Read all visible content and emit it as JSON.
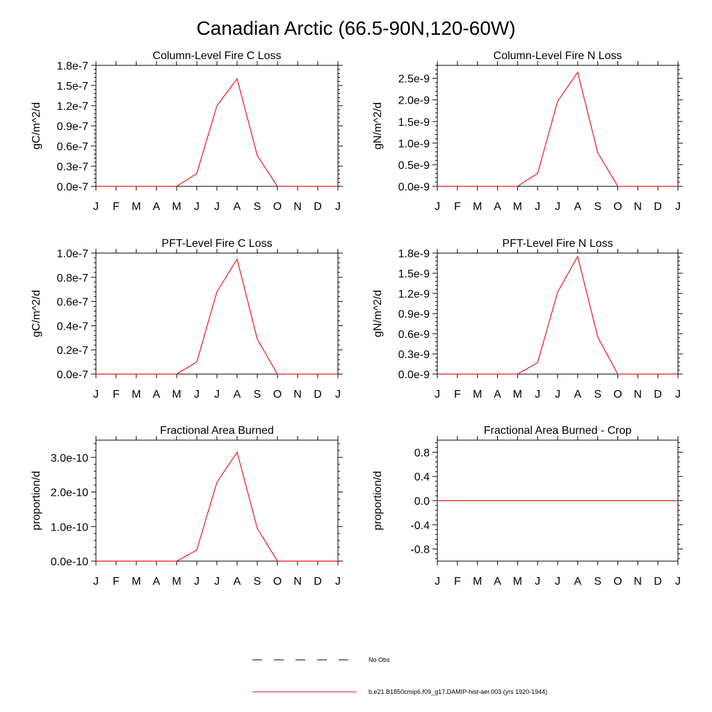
{
  "figure_title": "Canadian Arctic (66.5-90N,120-60W)",
  "colors": {
    "model_line": "#e8141c",
    "obs_line": "#000000",
    "axes": "#000000"
  },
  "legend": {
    "obs_label": "No Obs",
    "model_label": "b.e21.B1850cmip6.f09_g17.DAMIP-hist-aer.003 (yrs 1920-1944)"
  },
  "chart_data": [
    {
      "type": "line",
      "title": "Column-Level Fire C Loss",
      "ylabel": "gC/m^2/d",
      "categories": [
        "J",
        "F",
        "M",
        "A",
        "M",
        "J",
        "J",
        "A",
        "S",
        "O",
        "N",
        "D",
        "J"
      ],
      "ylim": [
        0,
        1.8e-07
      ],
      "yticks": [
        0,
        3e-08,
        6e-08,
        9e-08,
        1.2e-07,
        1.5e-07,
        1.8e-07
      ],
      "ytick_labels": [
        "0.0e-7",
        "0.3e-7",
        "0.6e-7",
        "0.9e-7",
        "1.2e-7",
        "1.5e-7",
        "1.8e-7"
      ],
      "series": [
        {
          "values": [
            0,
            0,
            0,
            0,
            0,
            1.9e-08,
            1.2e-07,
            1.6e-07,
            4.6e-08,
            0,
            0,
            0,
            0
          ]
        }
      ]
    },
    {
      "type": "line",
      "title": "Column-Level Fire N Loss",
      "ylabel": "gN/m^2/d",
      "categories": [
        "J",
        "F",
        "M",
        "A",
        "M",
        "J",
        "J",
        "A",
        "S",
        "O",
        "N",
        "D",
        "J"
      ],
      "ylim": [
        0,
        2.8e-09
      ],
      "yticks": [
        0,
        5e-10,
        1e-09,
        1.5e-09,
        2e-09,
        2.5e-09
      ],
      "ytick_labels": [
        "0.0e-9",
        "0.5e-9",
        "1.0e-9",
        "1.5e-9",
        "2.0e-9",
        "2.5e-9"
      ],
      "series": [
        {
          "values": [
            0,
            0,
            0,
            0,
            0,
            3e-10,
            1.97e-09,
            2.64e-09,
            7.8e-10,
            0,
            0,
            0,
            0
          ]
        }
      ]
    },
    {
      "type": "line",
      "title": "PFT-Level Fire C Loss",
      "ylabel": "gC/m^2/d",
      "categories": [
        "J",
        "F",
        "M",
        "A",
        "M",
        "J",
        "J",
        "A",
        "S",
        "O",
        "N",
        "D",
        "J"
      ],
      "ylim": [
        0,
        1e-07
      ],
      "yticks": [
        0,
        2e-08,
        4e-08,
        6e-08,
        8e-08,
        1e-07
      ],
      "ytick_labels": [
        "0.0e-7",
        "0.2e-7",
        "0.4e-7",
        "0.6e-7",
        "0.8e-7",
        "1.0e-7"
      ],
      "series": [
        {
          "values": [
            0,
            0,
            0,
            0,
            0,
            1e-08,
            6.8e-08,
            9.5e-08,
            2.9e-08,
            0,
            0,
            0,
            0
          ]
        }
      ]
    },
    {
      "type": "line",
      "title": "PFT-Level Fire N Loss",
      "ylabel": "gN/m^2/d",
      "categories": [
        "J",
        "F",
        "M",
        "A",
        "M",
        "J",
        "J",
        "A",
        "S",
        "O",
        "N",
        "D",
        "J"
      ],
      "ylim": [
        0,
        1.8e-09
      ],
      "yticks": [
        0,
        3e-10,
        6e-10,
        9e-10,
        1.2e-09,
        1.5e-09,
        1.8e-09
      ],
      "ytick_labels": [
        "0.0e-9",
        "0.3e-9",
        "0.6e-9",
        "0.9e-9",
        "1.2e-9",
        "1.5e-9",
        "1.8e-9"
      ],
      "series": [
        {
          "values": [
            0,
            0,
            0,
            0,
            0,
            1.7e-10,
            1.22e-09,
            1.75e-09,
            5.5e-10,
            0,
            0,
            0,
            0
          ]
        }
      ]
    },
    {
      "type": "line",
      "title": "Fractional Area Burned",
      "ylabel": "proportion/d",
      "categories": [
        "J",
        "F",
        "M",
        "A",
        "M",
        "J",
        "J",
        "A",
        "S",
        "O",
        "N",
        "D",
        "J"
      ],
      "ylim": [
        0,
        3.5e-10
      ],
      "yticks": [
        0,
        1e-10,
        2e-10,
        3e-10
      ],
      "ytick_labels": [
        "0.0e-10",
        "1.0e-10",
        "2.0e-10",
        "3.0e-10"
      ],
      "series": [
        {
          "values": [
            0,
            0,
            0,
            0,
            0,
            3.2e-11,
            2.28e-10,
            3.15e-10,
            9.5e-11,
            0,
            0,
            0,
            0
          ]
        }
      ]
    },
    {
      "type": "line",
      "title": "Fractional Area Burned - Crop",
      "ylabel": "proportion/d",
      "categories": [
        "J",
        "F",
        "M",
        "A",
        "M",
        "J",
        "J",
        "A",
        "S",
        "O",
        "N",
        "D",
        "J"
      ],
      "ylim": [
        -1,
        1
      ],
      "yticks": [
        -0.8,
        -0.4,
        0,
        0.4,
        0.8
      ],
      "ytick_labels": [
        "-0.8",
        "-0.4",
        "0.0",
        "0.4",
        "0.8"
      ],
      "series": [
        {
          "values": [
            0,
            0,
            0,
            0,
            0,
            0,
            0,
            0,
            0,
            0,
            0,
            0,
            0
          ]
        }
      ]
    }
  ]
}
